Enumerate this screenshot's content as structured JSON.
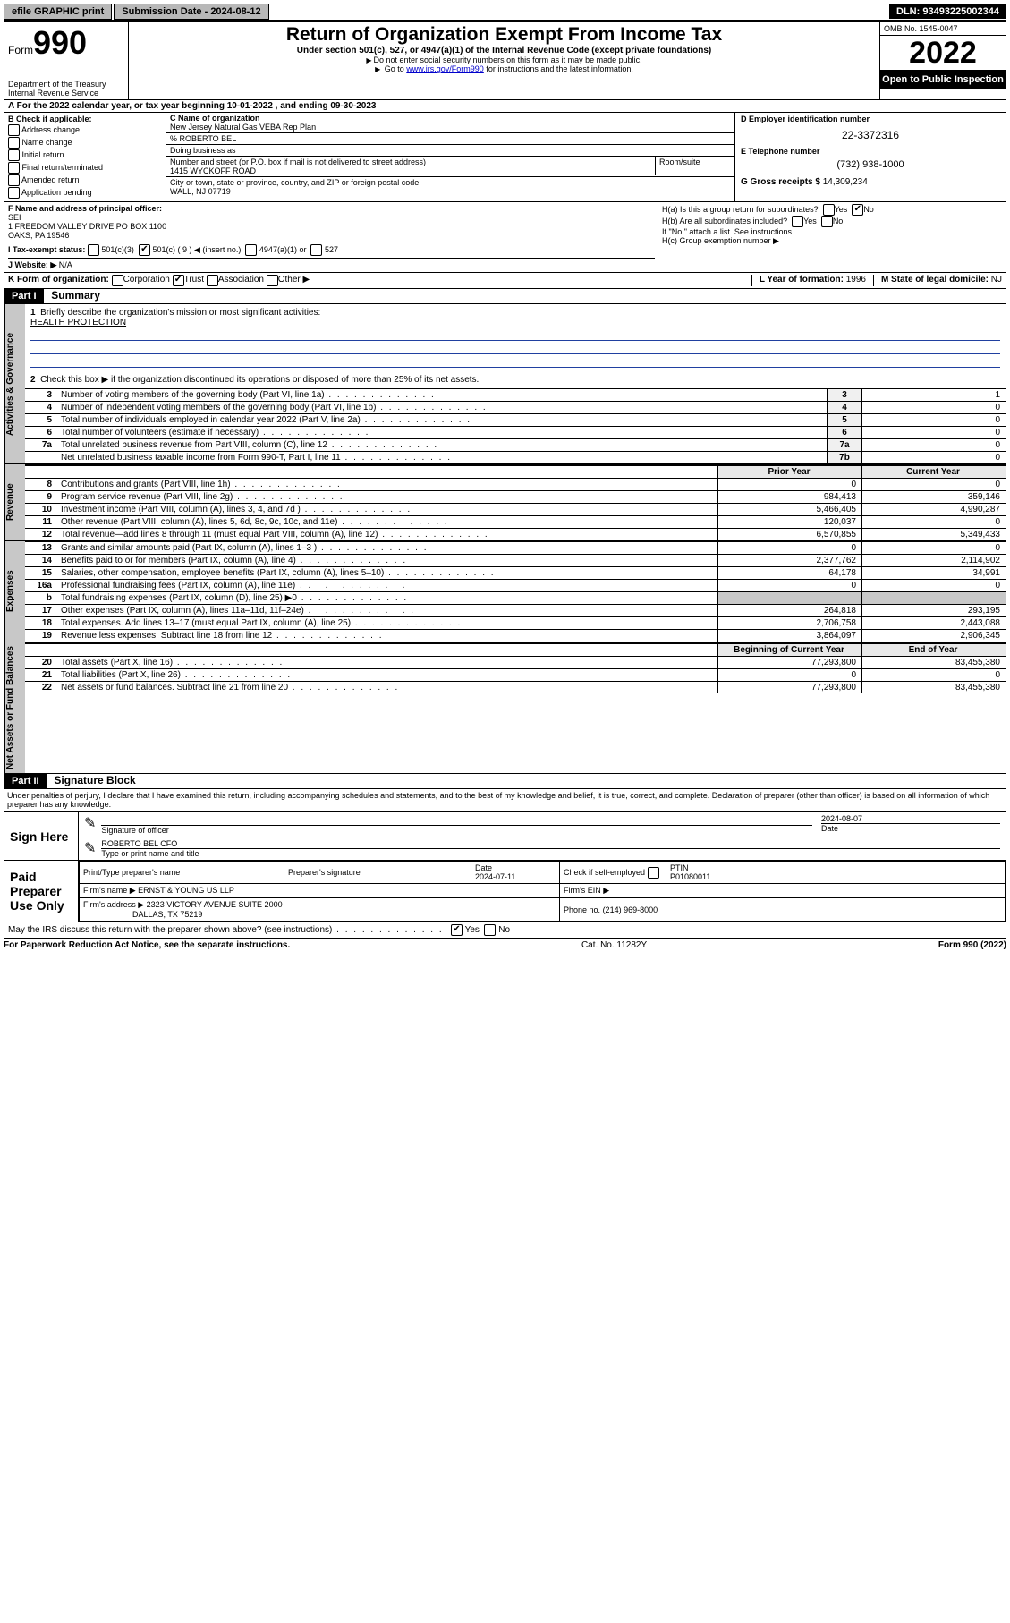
{
  "topbar": {
    "efile": "efile GRAPHIC print",
    "submission_label": "Submission Date - 2024-08-12",
    "dln": "DLN: 93493225002344"
  },
  "header": {
    "form_label": "Form",
    "form_number": "990",
    "dept": "Department of the Treasury",
    "irs": "Internal Revenue Service",
    "title": "Return of Organization Exempt From Income Tax",
    "subtitle": "Under section 501(c), 527, or 4947(a)(1) of the Internal Revenue Code (except private foundations)",
    "note1": "Do not enter social security numbers on this form as it may be made public.",
    "note2_pre": "Go to ",
    "note2_link": "www.irs.gov/Form990",
    "note2_post": " for instructions and the latest information.",
    "omb": "OMB No. 1545-0047",
    "year": "2022",
    "inspect": "Open to Public Inspection"
  },
  "line_a": "For the 2022 calendar year, or tax year beginning 10-01-2022   , and ending 09-30-2023",
  "col_b": {
    "label": "B Check if applicable:",
    "items": [
      "Address change",
      "Name change",
      "Initial return",
      "Final return/terminated",
      "Amended return",
      "Application pending"
    ]
  },
  "col_c": {
    "name_lbl": "C Name of organization",
    "name": "New Jersey Natural Gas VEBA Rep Plan",
    "care_of": "% ROBERTO BEL",
    "dba_lbl": "Doing business as",
    "addr_lbl": "Number and street (or P.O. box if mail is not delivered to street address)",
    "room_lbl": "Room/suite",
    "addr": "1415 WYCKOFF ROAD",
    "city_lbl": "City or town, state or province, country, and ZIP or foreign postal code",
    "city": "WALL, NJ  07719"
  },
  "col_de": {
    "d_lbl": "D Employer identification number",
    "ein": "22-3372316",
    "e_lbl": "E Telephone number",
    "phone": "(732) 938-1000",
    "g_lbl": "G Gross receipts $",
    "g_val": "14,309,234"
  },
  "row_fh": {
    "f_lbl": "F  Name and address of principal officer:",
    "f_name": "SEI",
    "f_addr1": "1 FREEDOM VALLEY DRIVE PO BOX 1100",
    "f_addr2": "OAKS, PA  19546",
    "ha": "H(a)  Is this a group return for subordinates?",
    "hb": "H(b)  Are all subordinates included?",
    "hb_note": "If \"No,\" attach a list. See instructions.",
    "hc": "H(c)  Group exemption number ▶",
    "yes": "Yes",
    "no": "No"
  },
  "row_i": {
    "lbl": "I    Tax-exempt status:",
    "opt1": "501(c)(3)",
    "opt2": "501(c) ( 9 ) ◀ (insert no.)",
    "opt3": "4947(a)(1) or",
    "opt4": "527"
  },
  "row_j": {
    "lbl": "J   Website: ▶",
    "val": "N/A"
  },
  "row_k": {
    "lbl": "K Form of organization:",
    "corp": "Corporation",
    "trust": "Trust",
    "assoc": "Association",
    "other": "Other ▶",
    "l_lbl": "L Year of formation:",
    "l_val": "1996",
    "m_lbl": "M State of legal domicile:",
    "m_val": "NJ"
  },
  "part1": {
    "hdr": "Part I",
    "title": "Summary",
    "q1": "Briefly describe the organization's mission or most significant activities:",
    "mission": "HEALTH PROTECTION",
    "q2": "Check this box ▶       if the organization discontinued its operations or disposed of more than 25% of its net assets.",
    "tabs": {
      "gov": "Activities & Governance",
      "rev": "Revenue",
      "exp": "Expenses",
      "net": "Net Assets or Fund Balances"
    },
    "gov_rows": [
      {
        "n": "3",
        "d": "Number of voting members of the governing body (Part VI, line 1a)",
        "box": "3",
        "v": "1"
      },
      {
        "n": "4",
        "d": "Number of independent voting members of the governing body (Part VI, line 1b)",
        "box": "4",
        "v": "0"
      },
      {
        "n": "5",
        "d": "Total number of individuals employed in calendar year 2022 (Part V, line 2a)",
        "box": "5",
        "v": "0"
      },
      {
        "n": "6",
        "d": "Total number of volunteers (estimate if necessary)",
        "box": "6",
        "v": "0"
      },
      {
        "n": "7a",
        "d": "Total unrelated business revenue from Part VIII, column (C), line 12",
        "box": "7a",
        "v": "0"
      },
      {
        "n": "",
        "d": "Net unrelated business taxable income from Form 990-T, Part I, line 11",
        "box": "7b",
        "v": "0"
      }
    ],
    "col_hdrs": {
      "prior": "Prior Year",
      "current": "Current Year",
      "begin": "Beginning of Current Year",
      "end": "End of Year"
    },
    "rev_rows": [
      {
        "n": "8",
        "d": "Contributions and grants (Part VIII, line 1h)",
        "p": "0",
        "c": "0"
      },
      {
        "n": "9",
        "d": "Program service revenue (Part VIII, line 2g)",
        "p": "984,413",
        "c": "359,146"
      },
      {
        "n": "10",
        "d": "Investment income (Part VIII, column (A), lines 3, 4, and 7d )",
        "p": "5,466,405",
        "c": "4,990,287"
      },
      {
        "n": "11",
        "d": "Other revenue (Part VIII, column (A), lines 5, 6d, 8c, 9c, 10c, and 11e)",
        "p": "120,037",
        "c": "0"
      },
      {
        "n": "12",
        "d": "Total revenue—add lines 8 through 11 (must equal Part VIII, column (A), line 12)",
        "p": "6,570,855",
        "c": "5,349,433"
      }
    ],
    "exp_rows": [
      {
        "n": "13",
        "d": "Grants and similar amounts paid (Part IX, column (A), lines 1–3 )",
        "p": "0",
        "c": "0"
      },
      {
        "n": "14",
        "d": "Benefits paid to or for members (Part IX, column (A), line 4)",
        "p": "2,377,762",
        "c": "2,114,902"
      },
      {
        "n": "15",
        "d": "Salaries, other compensation, employee benefits (Part IX, column (A), lines 5–10)",
        "p": "64,178",
        "c": "34,991"
      },
      {
        "n": "16a",
        "d": "Professional fundraising fees (Part IX, column (A), line 11e)",
        "p": "0",
        "c": "0"
      },
      {
        "n": "b",
        "d": "Total fundraising expenses (Part IX, column (D), line 25) ▶0",
        "p": "",
        "c": ""
      },
      {
        "n": "17",
        "d": "Other expenses (Part IX, column (A), lines 11a–11d, 11f–24e)",
        "p": "264,818",
        "c": "293,195"
      },
      {
        "n": "18",
        "d": "Total expenses. Add lines 13–17 (must equal Part IX, column (A), line 25)",
        "p": "2,706,758",
        "c": "2,443,088"
      },
      {
        "n": "19",
        "d": "Revenue less expenses. Subtract line 18 from line 12",
        "p": "3,864,097",
        "c": "2,906,345"
      }
    ],
    "net_rows": [
      {
        "n": "20",
        "d": "Total assets (Part X, line 16)",
        "p": "77,293,800",
        "c": "83,455,380"
      },
      {
        "n": "21",
        "d": "Total liabilities (Part X, line 26)",
        "p": "0",
        "c": "0"
      },
      {
        "n": "22",
        "d": "Net assets or fund balances. Subtract line 21 from line 20",
        "p": "77,293,800",
        "c": "83,455,380"
      }
    ]
  },
  "part2": {
    "hdr": "Part II",
    "title": "Signature Block",
    "decl": "Under penalties of perjury, I declare that I have examined this return, including accompanying schedules and statements, and to the best of my knowledge and belief, it is true, correct, and complete. Declaration of preparer (other than officer) is based on all information of which preparer has any knowledge.",
    "sign_here": "Sign Here",
    "sig_officer": "Signature of officer",
    "date_lbl": "Date",
    "sig_date": "2024-08-07",
    "officer_name": "ROBERTO BEL CFO",
    "type_name": "Type or print name and title",
    "paid": "Paid Preparer Use Only",
    "prep_name_lbl": "Print/Type preparer's name",
    "prep_sig_lbl": "Preparer's signature",
    "prep_date_lbl": "Date",
    "prep_date": "2024-07-11",
    "check_lbl": "Check        if self-employed",
    "ptin_lbl": "PTIN",
    "ptin": "P01080011",
    "firm_name_lbl": "Firm's name     ▶",
    "firm_name": "ERNST & YOUNG US LLP",
    "firm_ein_lbl": "Firm's EIN ▶",
    "firm_addr_lbl": "Firm's address ▶",
    "firm_addr1": "2323 VICTORY AVENUE SUITE 2000",
    "firm_addr2": "DALLAS, TX  75219",
    "firm_phone_lbl": "Phone no.",
    "firm_phone": "(214) 969-8000",
    "discuss": "May the IRS discuss this return with the preparer shown above? (see instructions)"
  },
  "footer": {
    "left": "For Paperwork Reduction Act Notice, see the separate instructions.",
    "mid": "Cat. No. 11282Y",
    "right": "Form 990 (2022)"
  },
  "colors": {
    "topbtn": "#b8b8b8",
    "black": "#000000",
    "linkblue": "#0000cc",
    "ruleline": "#2040a0",
    "tabgray": "#c8c8c8"
  }
}
